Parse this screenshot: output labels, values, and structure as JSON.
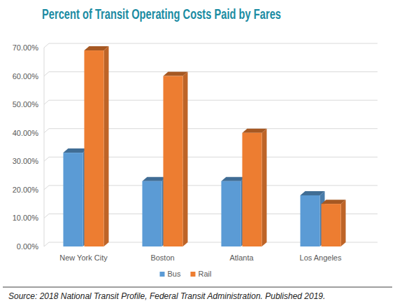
{
  "chart_data": {
    "type": "bar",
    "title": "Percent of Transit Operating Costs Paid by Fares",
    "categories": [
      "New York City",
      "Boston",
      "Atlanta",
      "Los Angeles"
    ],
    "series": [
      {
        "name": "Bus",
        "color": "#5b9bd5",
        "values": [
          33,
          23,
          23,
          18
        ]
      },
      {
        "name": "Rail",
        "color": "#ed7d31",
        "values": [
          69,
          60,
          40,
          15
        ]
      }
    ],
    "ylim": [
      0,
      70
    ],
    "yticks": [
      {
        "value": 0,
        "label": "0.00%"
      },
      {
        "value": 10,
        "label": "10.00%"
      },
      {
        "value": 20,
        "label": "20.00%"
      },
      {
        "value": 30,
        "label": "30.00%"
      },
      {
        "value": 40,
        "label": "40.00%"
      },
      {
        "value": 50,
        "label": "50.00%"
      },
      {
        "value": 60,
        "label": "60.00%"
      },
      {
        "value": 70,
        "label": "70.00%"
      }
    ],
    "grid": true,
    "legend": "bottom",
    "annotations": [
      "Source: 2018 National Transit Profile, Federal Transit Administration. Published 2019."
    ]
  }
}
